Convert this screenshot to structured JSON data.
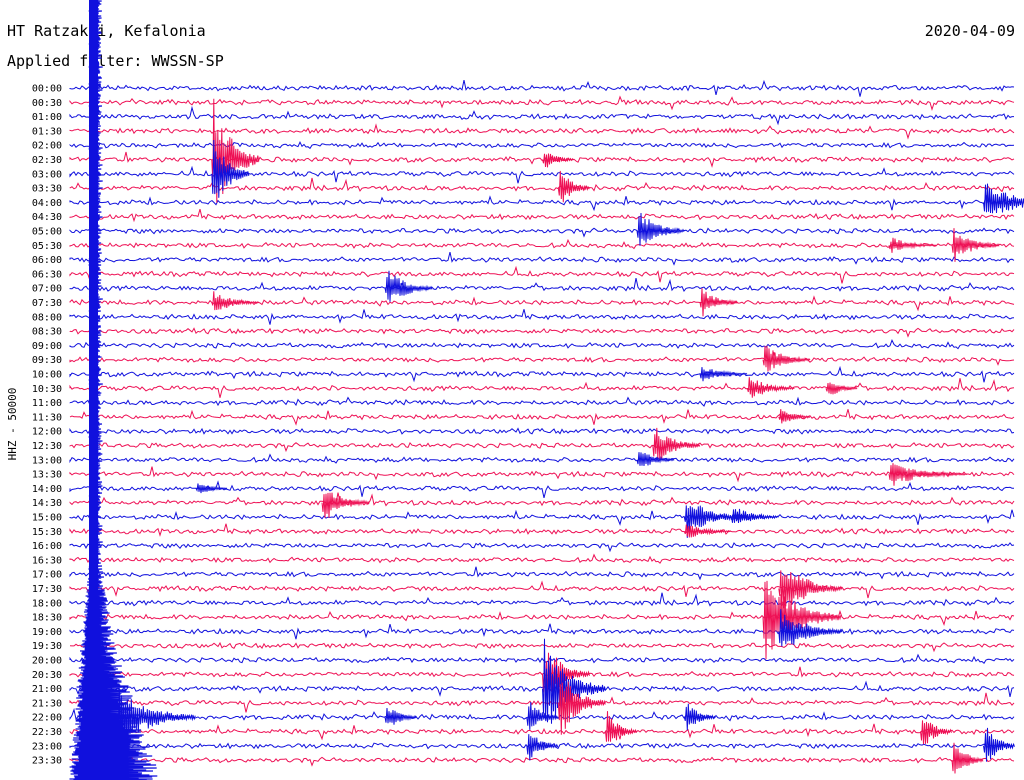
{
  "header": {
    "station": "HT Ratzakli, Kefalonia",
    "date": "2020-04-09",
    "filter": "Applied filter: WWSSN-SP"
  },
  "axis": {
    "ylabel": "HHZ - 50000"
  },
  "colors": {
    "trace_a": "#1010dd",
    "trace_b": "#ee1155",
    "text": "#000000",
    "background": "#ffffff"
  },
  "chart_data": {
    "type": "helicorder",
    "title": "HT Ratzakli, Kefalonia",
    "ylabel": "HHZ - 50000",
    "rows": [
      {
        "label": "00:00",
        "color": "blue"
      },
      {
        "label": "00:30",
        "color": "red"
      },
      {
        "label": "01:00",
        "color": "blue"
      },
      {
        "label": "01:30",
        "color": "red"
      },
      {
        "label": "02:00",
        "color": "blue"
      },
      {
        "label": "02:30",
        "color": "red"
      },
      {
        "label": "03:00",
        "color": "blue"
      },
      {
        "label": "03:30",
        "color": "red"
      },
      {
        "label": "04:00",
        "color": "blue"
      },
      {
        "label": "04:30",
        "color": "red"
      },
      {
        "label": "05:00",
        "color": "blue"
      },
      {
        "label": "05:30",
        "color": "red"
      },
      {
        "label": "06:00",
        "color": "blue"
      },
      {
        "label": "06:30",
        "color": "red"
      },
      {
        "label": "07:00",
        "color": "blue"
      },
      {
        "label": "07:30",
        "color": "red"
      },
      {
        "label": "08:00",
        "color": "blue"
      },
      {
        "label": "08:30",
        "color": "red"
      },
      {
        "label": "09:00",
        "color": "blue"
      },
      {
        "label": "09:30",
        "color": "red"
      },
      {
        "label": "10:00",
        "color": "blue"
      },
      {
        "label": "10:30",
        "color": "red"
      },
      {
        "label": "11:00",
        "color": "blue"
      },
      {
        "label": "11:30",
        "color": "red"
      },
      {
        "label": "12:00",
        "color": "blue"
      },
      {
        "label": "12:30",
        "color": "red"
      },
      {
        "label": "13:00",
        "color": "blue"
      },
      {
        "label": "13:30",
        "color": "red"
      },
      {
        "label": "14:00",
        "color": "blue"
      },
      {
        "label": "14:30",
        "color": "red"
      },
      {
        "label": "15:00",
        "color": "blue"
      },
      {
        "label": "15:30",
        "color": "red"
      },
      {
        "label": "16:00",
        "color": "blue"
      },
      {
        "label": "16:30",
        "color": "red"
      },
      {
        "label": "17:00",
        "color": "blue"
      },
      {
        "label": "17:30",
        "color": "red"
      },
      {
        "label": "18:00",
        "color": "blue"
      },
      {
        "label": "18:30",
        "color": "red"
      },
      {
        "label": "19:00",
        "color": "blue"
      },
      {
        "label": "19:30",
        "color": "red"
      },
      {
        "label": "20:00",
        "color": "blue"
      },
      {
        "label": "20:30",
        "color": "red"
      },
      {
        "label": "21:00",
        "color": "blue"
      },
      {
        "label": "21:30",
        "color": "red"
      },
      {
        "label": "22:00",
        "color": "blue"
      },
      {
        "label": "22:30",
        "color": "red"
      },
      {
        "label": "23:00",
        "color": "blue"
      },
      {
        "label": "23:30",
        "color": "red"
      }
    ],
    "events": [
      {
        "row": 5,
        "minute": 4.5,
        "amp": 70,
        "dur": 1.5
      },
      {
        "row": 6,
        "minute": 4.5,
        "amp": 45,
        "dur": 1.2
      },
      {
        "row": 5,
        "minute": 15.0,
        "amp": 14,
        "dur": 1.0
      },
      {
        "row": 7,
        "minute": 15.5,
        "amp": 24,
        "dur": 1.0
      },
      {
        "row": 8,
        "minute": 29.0,
        "amp": 22,
        "dur": 2.5
      },
      {
        "row": 10,
        "minute": 18.0,
        "amp": 25,
        "dur": 1.5
      },
      {
        "row": 11,
        "minute": 28.0,
        "amp": 20,
        "dur": 1.5
      },
      {
        "row": 11,
        "minute": 26.0,
        "amp": 10,
        "dur": 1.5
      },
      {
        "row": 14,
        "minute": 10.0,
        "amp": 24,
        "dur": 1.5
      },
      {
        "row": 15,
        "minute": 4.5,
        "amp": 14,
        "dur": 1.5
      },
      {
        "row": 15,
        "minute": 20.0,
        "amp": 18,
        "dur": 1.2
      },
      {
        "row": 19,
        "minute": 22.0,
        "amp": 18,
        "dur": 1.5
      },
      {
        "row": 20,
        "minute": 20.0,
        "amp": 10,
        "dur": 1.5
      },
      {
        "row": 21,
        "minute": 21.5,
        "amp": 15,
        "dur": 1.5
      },
      {
        "row": 21,
        "minute": 24.0,
        "amp": 14,
        "dur": 1.0
      },
      {
        "row": 23,
        "minute": 22.5,
        "amp": 12,
        "dur": 1.0
      },
      {
        "row": 25,
        "minute": 18.5,
        "amp": 24,
        "dur": 1.5
      },
      {
        "row": 26,
        "minute": 18.0,
        "amp": 14,
        "dur": 1.2
      },
      {
        "row": 27,
        "minute": 26.0,
        "amp": 14,
        "dur": 2.5
      },
      {
        "row": 28,
        "minute": 4.0,
        "amp": 10,
        "dur": 1.0
      },
      {
        "row": 29,
        "minute": 8.0,
        "amp": 24,
        "dur": 1.5
      },
      {
        "row": 30,
        "minute": 19.5,
        "amp": 24,
        "dur": 2.0
      },
      {
        "row": 30,
        "minute": 21.0,
        "amp": 14,
        "dur": 1.5
      },
      {
        "row": 31,
        "minute": 19.5,
        "amp": 10,
        "dur": 1.5
      },
      {
        "row": 35,
        "minute": 22.5,
        "amp": 35,
        "dur": 2.0
      },
      {
        "row": 37,
        "minute": 22.0,
        "amp": 50,
        "dur": 2.5
      },
      {
        "row": 38,
        "minute": 22.5,
        "amp": 28,
        "dur": 2.0
      },
      {
        "row": 41,
        "minute": 15.0,
        "amp": 40,
        "dur": 1.5
      },
      {
        "row": 42,
        "minute": 15.0,
        "amp": 55,
        "dur": 2.0
      },
      {
        "row": 43,
        "minute": 15.5,
        "amp": 40,
        "dur": 1.5
      },
      {
        "row": 44,
        "minute": 1.5,
        "amp": 35,
        "dur": 2.5
      },
      {
        "row": 44,
        "minute": 10.0,
        "amp": 18,
        "dur": 1.0
      },
      {
        "row": 44,
        "minute": 14.5,
        "amp": 25,
        "dur": 1.0
      },
      {
        "row": 44,
        "minute": 19.5,
        "amp": 20,
        "dur": 1.0
      },
      {
        "row": 45,
        "minute": 17.0,
        "amp": 25,
        "dur": 1.0
      },
      {
        "row": 45,
        "minute": 27.0,
        "amp": 25,
        "dur": 1.0
      },
      {
        "row": 46,
        "minute": 14.5,
        "amp": 22,
        "dur": 1.0
      },
      {
        "row": 46,
        "minute": 29.0,
        "amp": 30,
        "dur": 1.0
      },
      {
        "row": 47,
        "minute": 28.0,
        "amp": 25,
        "dur": 1.0
      }
    ]
  }
}
